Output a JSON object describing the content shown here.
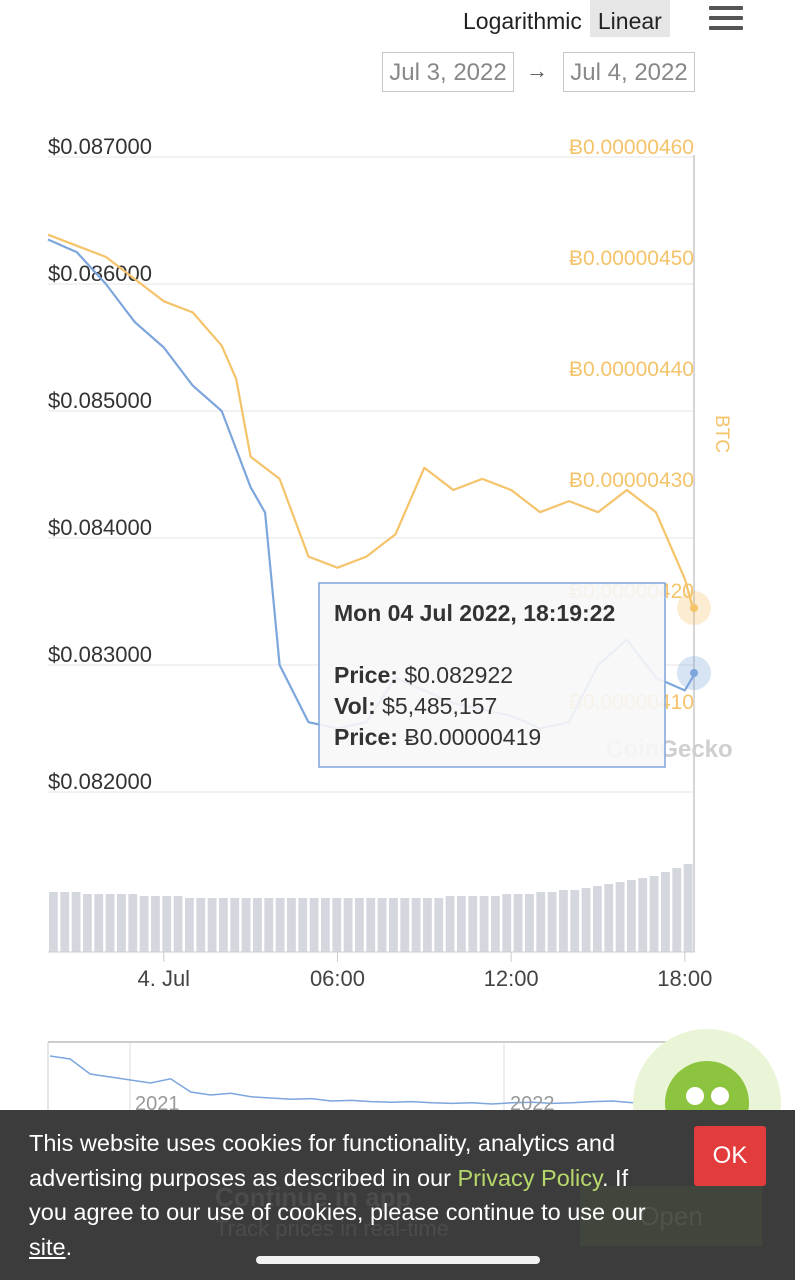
{
  "toolbar": {
    "logarithmic_label": "Logarithmic",
    "linear_label": "Linear",
    "menu_icon": "hamburger-icon"
  },
  "date_range": {
    "start": "Jul 3, 2022",
    "arrow": "→",
    "end": "Jul 4, 2022"
  },
  "chart_data": {
    "type": "line",
    "series": [
      {
        "name": "Price",
        "color": "#7ca6dc",
        "x": [
          "03 Jul 20:00",
          "03 Jul 21:00",
          "03 Jul 22:00",
          "03 Jul 23:00",
          "04 Jul 00:00",
          "04 Jul 01:00",
          "04 Jul 02:00",
          "04 Jul 02:30",
          "04 Jul 03:00",
          "04 Jul 03:30",
          "04 Jul 04:00",
          "04 Jul 05:00",
          "04 Jul 06:00",
          "04 Jul 07:00",
          "04 Jul 08:00",
          "04 Jul 09:00",
          "04 Jul 10:00",
          "04 Jul 11:00",
          "04 Jul 12:00",
          "04 Jul 13:00",
          "04 Jul 14:00",
          "04 Jul 15:00",
          "04 Jul 16:00",
          "04 Jul 17:00",
          "04 Jul 18:00",
          "04 Jul 18:19"
        ],
        "y": [
          0.08635,
          0.08625,
          0.086,
          0.0857,
          0.0855,
          0.0852,
          0.085,
          0.0847,
          0.0844,
          0.0842,
          0.083,
          0.08255,
          0.0825,
          0.08255,
          0.0829,
          0.0828,
          0.0827,
          0.08265,
          0.0826,
          0.0825,
          0.08255,
          0.083,
          0.0832,
          0.0829,
          0.0828,
          0.082922
        ]
      },
      {
        "name": "BTC",
        "color": "#f4c36a",
        "x": [
          "03 Jul 20:00",
          "03 Jul 21:00",
          "03 Jul 22:00",
          "03 Jul 23:00",
          "04 Jul 00:00",
          "04 Jul 01:00",
          "04 Jul 02:00",
          "04 Jul 02:30",
          "04 Jul 03:00",
          "04 Jul 03:30",
          "04 Jul 04:00",
          "04 Jul 05:00",
          "04 Jul 06:00",
          "04 Jul 07:00",
          "04 Jul 08:00",
          "04 Jul 09:00",
          "04 Jul 10:00",
          "04 Jul 11:00",
          "04 Jul 12:00",
          "04 Jul 13:00",
          "04 Jul 14:00",
          "04 Jul 15:00",
          "04 Jul 16:00",
          "04 Jul 17:00",
          "04 Jul 18:00",
          "04 Jul 18:19"
        ],
        "y": [
          4.53e-06,
          4.52e-06,
          4.51e-06,
          4.49e-06,
          4.47e-06,
          4.46e-06,
          4.43e-06,
          4.4e-06,
          4.33e-06,
          4.32e-06,
          4.31e-06,
          4.24e-06,
          4.23e-06,
          4.24e-06,
          4.26e-06,
          4.32e-06,
          4.3e-06,
          4.31e-06,
          4.3e-06,
          4.28e-06,
          4.29e-06,
          4.28e-06,
          4.3e-06,
          4.28e-06,
          4.22e-06,
          4.19e-06
        ]
      }
    ],
    "volume": [
      30,
      30,
      30,
      29,
      29,
      29,
      29,
      29,
      28,
      28,
      28,
      28,
      27,
      27,
      27,
      27,
      27,
      27,
      27,
      27,
      27,
      27,
      27,
      27,
      27,
      27,
      27,
      27,
      27,
      27,
      27,
      27,
      27,
      27,
      27,
      28,
      28,
      28,
      28,
      28,
      29,
      29,
      29,
      30,
      30,
      31,
      31,
      32,
      33,
      34,
      35,
      36,
      37,
      38,
      40,
      42,
      44
    ],
    "left_axis": {
      "ticks": [
        "$0.087000",
        "$0.086000",
        "$0.085000",
        "$0.084000",
        "$0.083000",
        "$0.082000"
      ],
      "ylim": [
        0.082,
        0.087
      ]
    },
    "right_axis": {
      "label": "BTC",
      "ticks": [
        "Ƀ0.00000460",
        "Ƀ0.00000450",
        "Ƀ0.00000440",
        "Ƀ0.00000430",
        "Ƀ0.00000420",
        "Ƀ0.00000410"
      ],
      "ylim": [
        4.1e-06,
        4.6e-06
      ]
    },
    "x_ticks": [
      "4. Jul",
      "06:00",
      "12:00",
      "18:00"
    ],
    "watermark": "CoinGecko",
    "tooltip": {
      "title": "Mon 04 Jul 2022, 18:19:22",
      "price_label": "Price:",
      "price_value": "$0.082922",
      "vol_label": "Vol:",
      "vol_value": "$5,485,157",
      "btc_label": "Price:",
      "btc_value": "Ƀ0.00000419"
    },
    "navigator": {
      "x_ticks": [
        "2021",
        "2022"
      ],
      "y": [
        0.9,
        0.85,
        0.6,
        0.55,
        0.5,
        0.45,
        0.52,
        0.3,
        0.25,
        0.28,
        0.22,
        0.2,
        0.18,
        0.19,
        0.15,
        0.16,
        0.14,
        0.13,
        0.14,
        0.12,
        0.11,
        0.12,
        0.1,
        0.12,
        0.13,
        0.11,
        0.12,
        0.14,
        0.15,
        0.12,
        0.1,
        0.1,
        0.1
      ]
    }
  },
  "cookie_banner": {
    "text_before": "This website uses cookies for functionality, analytics and advertising purposes as described in our ",
    "privacy_link": "Privacy Policy",
    "text_after": ". If you agree to our use of cookies, please continue to use our ",
    "site_link": "site",
    "period": ".",
    "ok_label": "OK"
  },
  "app_banner": {
    "title": "Continue in app",
    "subtitle": "Track prices in real-time",
    "open_label": "Open"
  }
}
